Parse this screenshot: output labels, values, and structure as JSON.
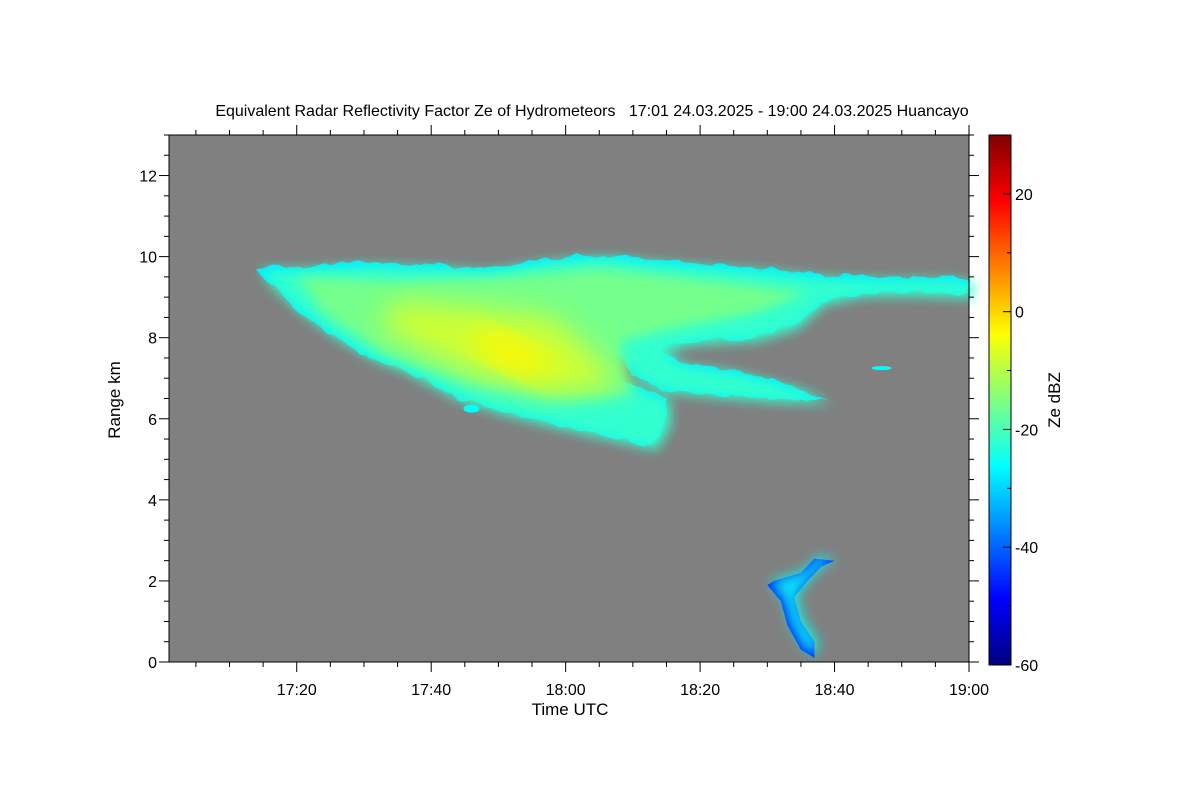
{
  "chart_data": {
    "type": "heatmap",
    "title": "Equivalent Radar Reflectivity Factor Ze of Hydrometeors   17:01 24.03.2025 - 19:00 24.03.2025 Huancayo",
    "xlabel": "Time UTC",
    "ylabel": "Range km",
    "colorbar_label": "Ze dBZ",
    "x_unit": "time",
    "xlim": [
      "17:01",
      "19:00"
    ],
    "ylim": [
      0,
      13
    ],
    "clim": [
      -60,
      30
    ],
    "x_ticks": [
      "17:20",
      "17:40",
      "18:00",
      "18:20",
      "18:40",
      "19:00"
    ],
    "y_ticks": [
      "0",
      "2",
      "4",
      "6",
      "8",
      "10",
      "12"
    ],
    "colorbar_ticks": [
      "-60",
      "-40",
      "-20",
      "0",
      "20"
    ],
    "background_color": "#808080",
    "colormap": [
      "#00007f",
      "#0000ff",
      "#0080ff",
      "#00ffff",
      "#80ff80",
      "#ffff00",
      "#ff8000",
      "#ff0000",
      "#7f0000"
    ],
    "features": [
      {
        "name": "upper cloud layer",
        "time_range": [
          "17:14",
          "19:00"
        ],
        "range_km": [
          5.3,
          10.1
        ],
        "ze_dbz": [
          -30,
          -3
        ],
        "peak_ze_dbz": -3,
        "peak_time": "17:52",
        "peak_range_km": 7.6
      },
      {
        "name": "low echo",
        "time_range": [
          "18:30",
          "18:40"
        ],
        "range_km": [
          0.1,
          2.6
        ],
        "ze_dbz": [
          -45,
          -25
        ]
      }
    ]
  }
}
